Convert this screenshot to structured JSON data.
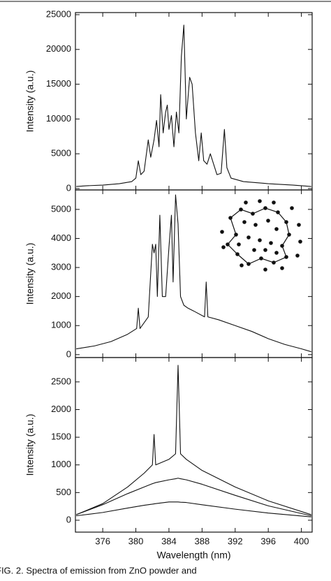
{
  "chart_data": [
    {
      "type": "line",
      "ylabel": "Intensity (a.u.)",
      "xlim": [
        372.7,
        401.3
      ],
      "xticks": [
        376,
        380,
        384,
        388,
        392,
        396,
        400
      ],
      "ylim": [
        -200,
        25300
      ],
      "yticks": [
        0,
        5000,
        10000,
        15000,
        20000,
        25000
      ],
      "x": [
        372.8,
        374,
        376,
        378,
        379.5,
        380,
        380.3,
        380.6,
        381,
        381.5,
        381.8,
        382.2,
        382.5,
        382.8,
        383,
        383.3,
        383.6,
        383.8,
        384,
        384.3,
        384.6,
        384.9,
        385.2,
        385.5,
        385.8,
        386.1,
        386.5,
        386.8,
        387.2,
        387.6,
        387.9,
        388.2,
        388.6,
        389,
        389.4,
        389.8,
        390.3,
        390.7,
        391,
        391.5,
        393,
        396,
        399,
        401.2
      ],
      "series": [
        {
          "color": "#111111",
          "values": [
            300,
            400,
            500,
            700,
            1000,
            1500,
            4000,
            2000,
            2500,
            7000,
            4500,
            7000,
            9800,
            6000,
            13500,
            8000,
            11000,
            12000,
            8500,
            10500,
            6000,
            11000,
            8000,
            19000,
            23500,
            10000,
            16000,
            15000,
            8000,
            4000,
            8000,
            4000,
            3500,
            5000,
            3500,
            2000,
            2200,
            8500,
            3000,
            1500,
            1000,
            700,
            500,
            300
          ]
        }
      ]
    },
    {
      "type": "line",
      "ylabel": "Intensity (a.u.)",
      "xlim": [
        372.7,
        401.3
      ],
      "xticks": [
        376,
        380,
        384,
        388,
        392,
        396,
        400
      ],
      "ylim": [
        -100,
        5670
      ],
      "yticks": [
        0,
        1000,
        2000,
        3000,
        4000,
        5000
      ],
      "x": [
        372.8,
        375,
        377,
        379,
        380.1,
        380.3,
        380.5,
        381.5,
        382,
        382.2,
        382.4,
        382.6,
        382.9,
        383.2,
        383.6,
        384,
        384.3,
        384.5,
        384.8,
        385.1,
        385.4,
        385.8,
        386.3,
        387,
        388.3,
        388.5,
        388.7,
        390,
        392,
        394,
        396,
        398,
        400,
        401.2
      ],
      "series": [
        {
          "color": "#111111",
          "values": [
            200,
            300,
            450,
            700,
            900,
            1600,
            900,
            1300,
            3800,
            3500,
            3800,
            2000,
            4800,
            2000,
            2000,
            3700,
            4800,
            2500,
            5500,
            4500,
            2000,
            1700,
            1600,
            1500,
            1300,
            2500,
            1300,
            1200,
            1000,
            800,
            550,
            350,
            200,
            100
          ]
        }
      ]
    },
    {
      "type": "line",
      "ylabel": "Intensity (a.u.)",
      "xlabel": "Wavelength (nm)",
      "caption": "FIG. 2.   Spectra of emission from ZnO powder and",
      "xlim": [
        372.7,
        401.3
      ],
      "xticks": [
        376,
        380,
        384,
        388,
        392,
        396,
        400
      ],
      "ylim": [
        -215,
        2940
      ],
      "yticks": [
        0,
        500,
        1000,
        1500,
        2000,
        2500
      ],
      "x": [
        372.8,
        376,
        379,
        381,
        382,
        382.2,
        382.4,
        384,
        384.8,
        385.1,
        385.4,
        386.1,
        388,
        392,
        396,
        401.2
      ],
      "series": [
        {
          "color": "#111111",
          "values": [
            100,
            300,
            600,
            850,
            1000,
            1550,
            1000,
            1100,
            1200,
            2800,
            1200,
            1100,
            900,
            600,
            350,
            100
          ]
        },
        {
          "color": "#111111",
          "values": [
            100,
            280,
            480,
            600,
            660,
            670,
            680,
            730,
            750,
            760,
            750,
            730,
            650,
            450,
            260,
            80
          ]
        },
        {
          "color": "#111111",
          "values": [
            80,
            140,
            220,
            270,
            290,
            295,
            300,
            330,
            330,
            330,
            325,
            320,
            280,
            200,
            130,
            60
          ]
        }
      ]
    }
  ]
}
